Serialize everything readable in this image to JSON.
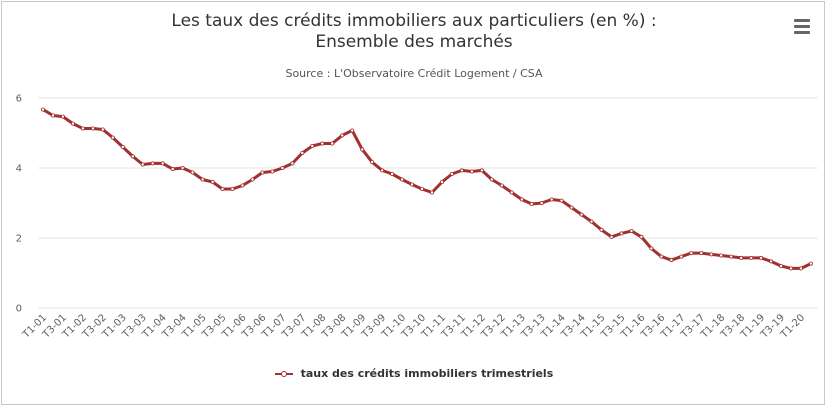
{
  "title_line1": "Les taux des crédits immobiliers aux particuliers (en %) :",
  "title_line2": "Ensemble des marchés",
  "subtitle": "Source : L'Observatoire Crédit Logement / CSA",
  "menu_icon": "hamburger-menu-icon",
  "colors": {
    "series": "#a0312f",
    "grid": "#e6e6e6",
    "axis_labels": "#606060"
  },
  "chart_data": {
    "type": "line",
    "title": "Les taux des crédits immobiliers aux particuliers (en %) : Ensemble des marchés",
    "subtitle": "Source : L'Observatoire Crédit Logement / CSA",
    "xlabel": "",
    "ylabel": "",
    "ylim": [
      0,
      6
    ],
    "yticks": [
      0,
      2,
      4,
      6
    ],
    "grid": "horizontal",
    "legend_position": "bottom-center",
    "x_tick_labels": [
      "T1-01",
      "T3-01",
      "T1-02",
      "T3-02",
      "T1-03",
      "T3-03",
      "T1-04",
      "T3-04",
      "T1-05",
      "T3-05",
      "T1-06",
      "T3-06",
      "T1-07",
      "T3-07",
      "T1-08",
      "T3-08",
      "T1-09",
      "T3-09",
      "T1-10",
      "T3-10",
      "T1-11",
      "T3-11",
      "T1-12",
      "T3-12",
      "T1-13",
      "T3-13",
      "T1-14",
      "T3-14",
      "T1-15",
      "T3-15",
      "T1-16",
      "T3-16",
      "T1-17",
      "T3-17",
      "T1-18",
      "T3-18",
      "T1-19",
      "T3-19",
      "T1-20"
    ],
    "series": [
      {
        "name": "taux des crédits immobiliers trimestriels",
        "values": [
          5.67,
          5.5,
          5.47,
          5.27,
          5.13,
          5.13,
          5.1,
          4.87,
          4.6,
          4.33,
          4.1,
          4.13,
          4.13,
          3.97,
          4.0,
          3.87,
          3.67,
          3.6,
          3.4,
          3.4,
          3.5,
          3.67,
          3.87,
          3.9,
          4.0,
          4.13,
          4.43,
          4.63,
          4.7,
          4.7,
          4.93,
          5.07,
          4.53,
          4.17,
          3.93,
          3.83,
          3.67,
          3.53,
          3.4,
          3.3,
          3.6,
          3.83,
          3.93,
          3.9,
          3.93,
          3.67,
          3.5,
          3.3,
          3.1,
          2.97,
          3.0,
          3.1,
          3.07,
          2.87,
          2.67,
          2.47,
          2.23,
          2.03,
          2.13,
          2.2,
          2.03,
          1.7,
          1.47,
          1.37,
          1.47,
          1.57,
          1.57,
          1.53,
          1.5,
          1.47,
          1.43,
          1.43,
          1.43,
          1.33,
          1.2,
          1.13,
          1.13,
          1.27
        ]
      }
    ]
  }
}
